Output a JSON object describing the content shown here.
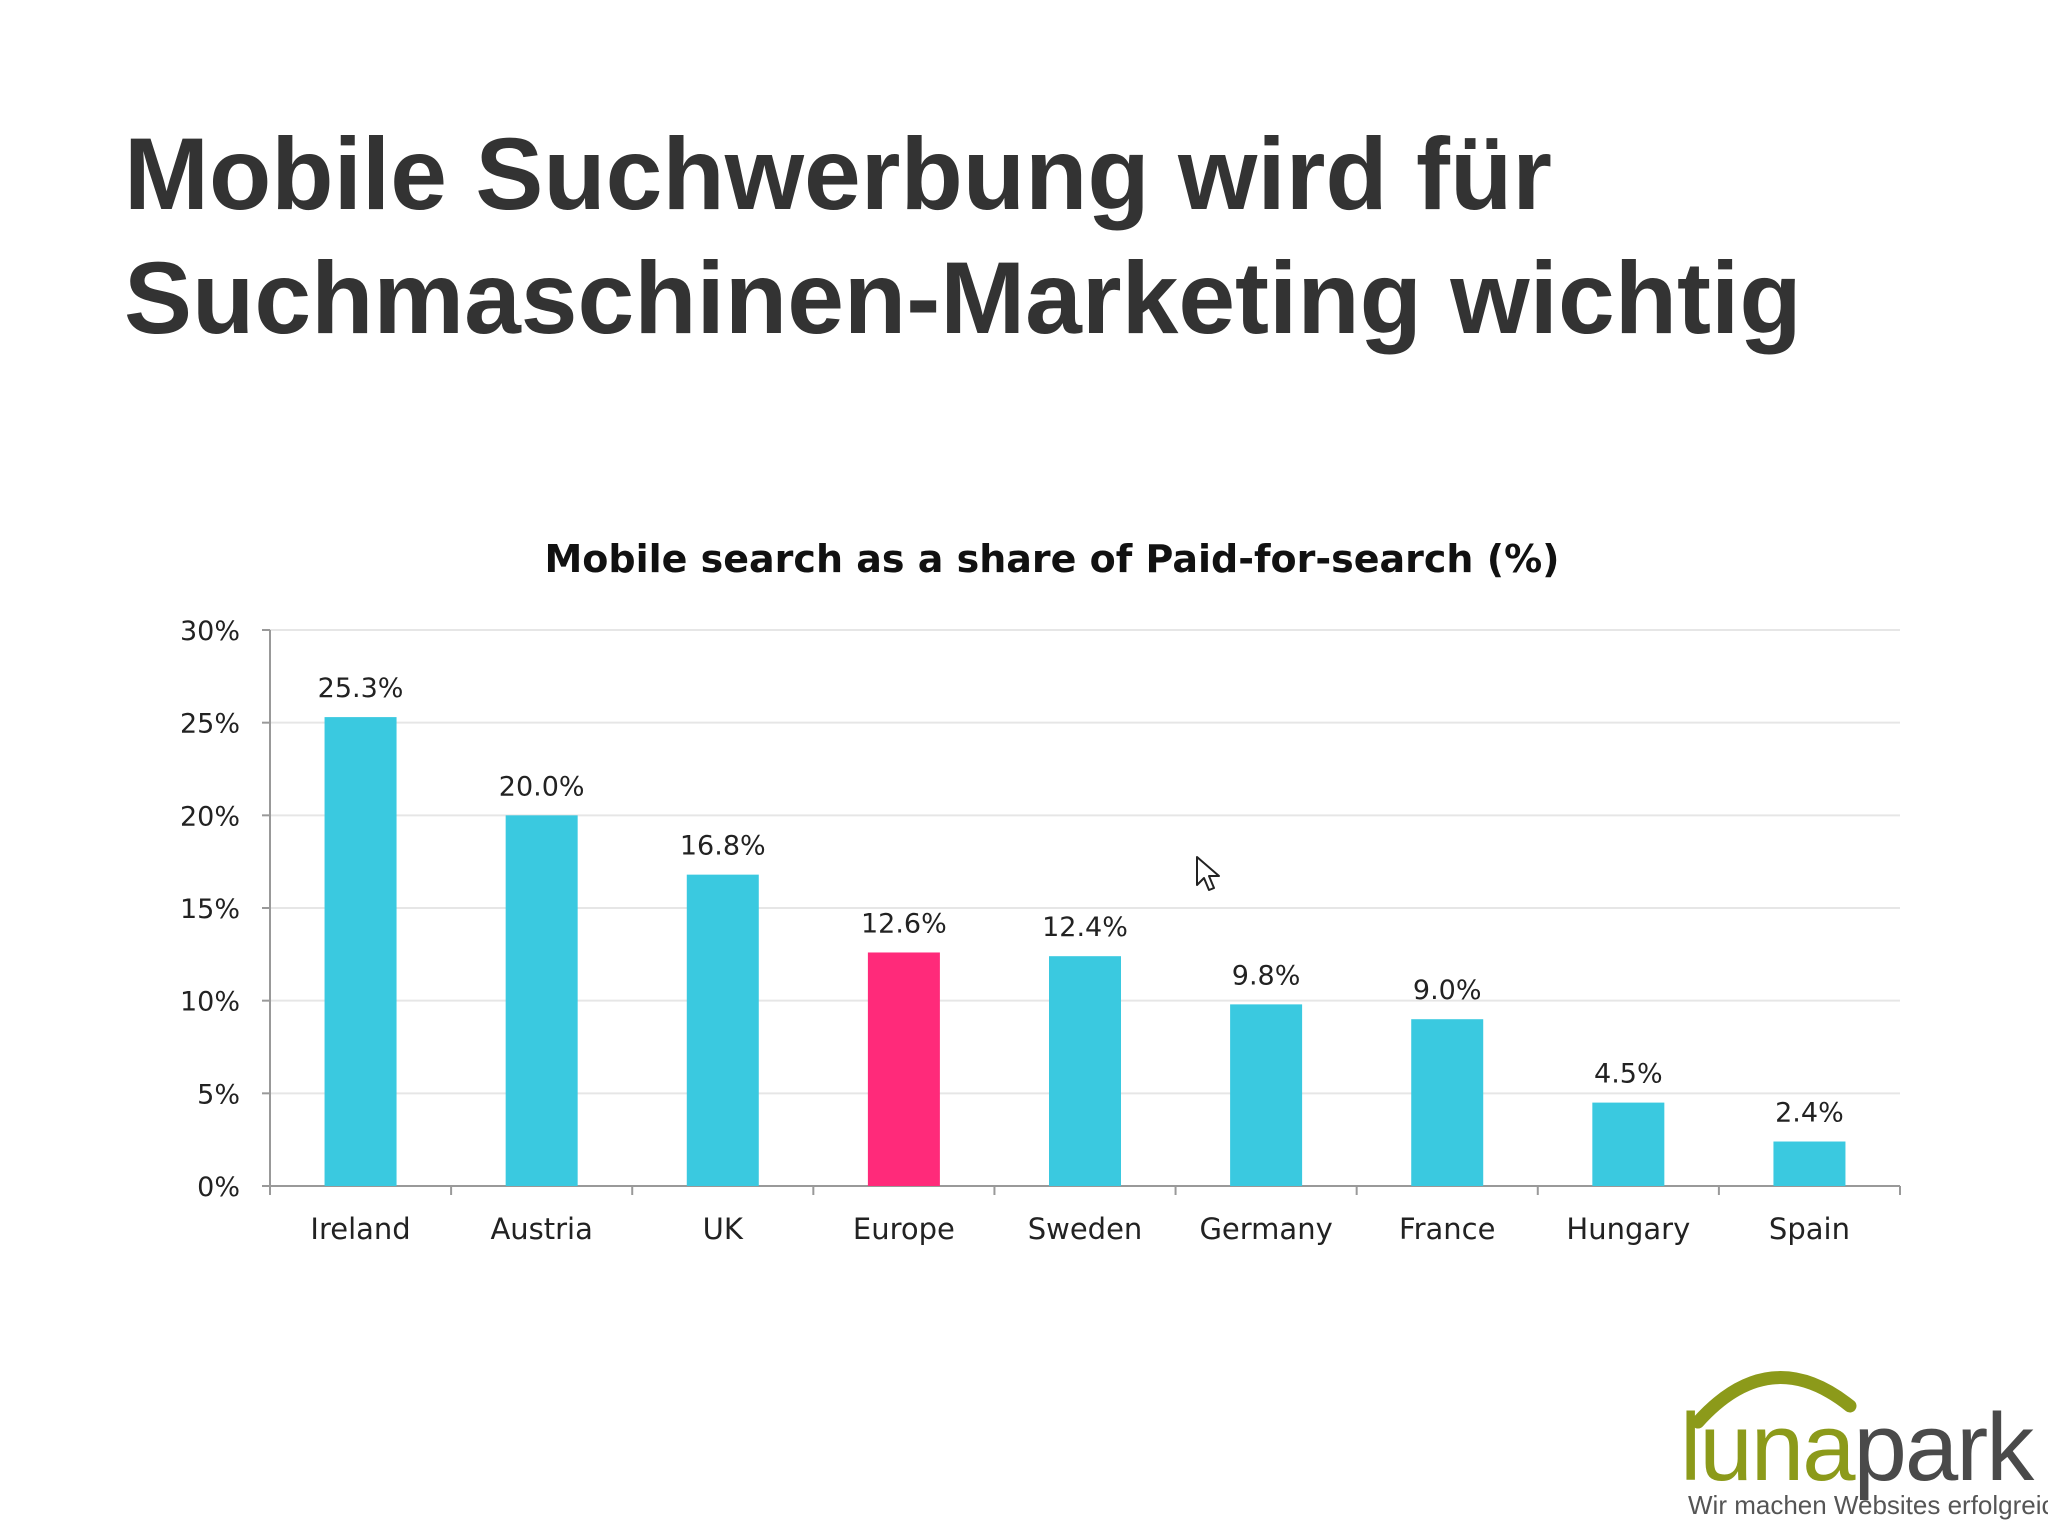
{
  "slide": {
    "title_line1": "Mobile Suchwerbung wird für",
    "title_line2": "Suchmaschinen-Marketing wichtig"
  },
  "logo": {
    "name_part1": "luna",
    "name_part2": "park",
    "tagline": "Wir machen Websites erfolgreich",
    "colors": {
      "arc": "#8c9a1a",
      "luna": "#8c9a1a",
      "park": "#4a4a4a"
    }
  },
  "chart_data": {
    "type": "bar",
    "title": "Mobile search as a share of Paid-for-search (%)",
    "categories": [
      "Ireland",
      "Austria",
      "UK",
      "Europe",
      "Sweden",
      "Germany",
      "France",
      "Hungary",
      "Spain"
    ],
    "values": [
      25.3,
      20.0,
      16.8,
      12.6,
      12.4,
      9.8,
      9.0,
      4.5,
      2.4
    ],
    "value_labels": [
      "25.3%",
      "20.0%",
      "16.8%",
      "12.6%",
      "12.4%",
      "9.8%",
      "9.0%",
      "4.5%",
      "2.4%"
    ],
    "highlight_category": "Europe",
    "colors": {
      "bar": "#3ac9e0",
      "highlight": "#ff2a7a",
      "grid": "#e6e6e6",
      "axis": "#999999"
    },
    "ylim": [
      0,
      30
    ],
    "yticks": [
      0,
      5,
      10,
      15,
      20,
      25,
      30
    ],
    "ytick_labels": [
      "0%",
      "5%",
      "10%",
      "15%",
      "20%",
      "25%",
      "30%"
    ],
    "xlabel": "",
    "ylabel": "",
    "grid": true,
    "legend": "none"
  }
}
